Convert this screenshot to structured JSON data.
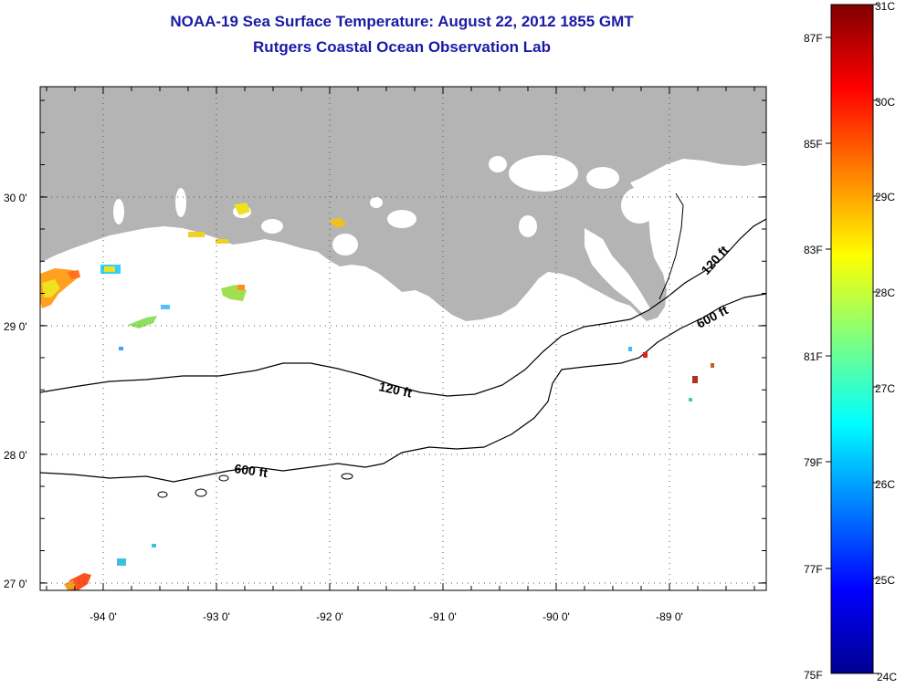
{
  "header": {
    "title_line1": "NOAA-19 Sea Surface Temperature:  August 22, 2012 1855 GMT",
    "title_line2": "Rutgers Coastal Ocean Observation Lab"
  },
  "map": {
    "lon_labels": [
      "-94 0'",
      "-93 0'",
      "-92 0'",
      "-91 0'",
      "-90 0'",
      "-89 0'"
    ],
    "lat_labels": [
      "30 0'",
      "29 0'",
      "28 0'",
      "27 0'"
    ],
    "contour_labels": {
      "shelf_120_west": "120 ft",
      "shelf_120_east": "120 ft",
      "shelf_600_west": "600 ft",
      "shelf_600_east": "600 ft"
    },
    "colors": {
      "land": "#b4b4b4",
      "ocean_background": "#ffffff",
      "graticule": "#555555",
      "contour": "#000000"
    }
  },
  "colorbar": {
    "celsius_labels": [
      "31C",
      "30C",
      "29C",
      "28C",
      "27C",
      "26C",
      "25C",
      "24C"
    ],
    "fahrenheit_labels": [
      "87F",
      "85F",
      "83F",
      "81F",
      "79F",
      "77F",
      "75F"
    ],
    "range_celsius": [
      24,
      31
    ],
    "colormap": "jet"
  }
}
